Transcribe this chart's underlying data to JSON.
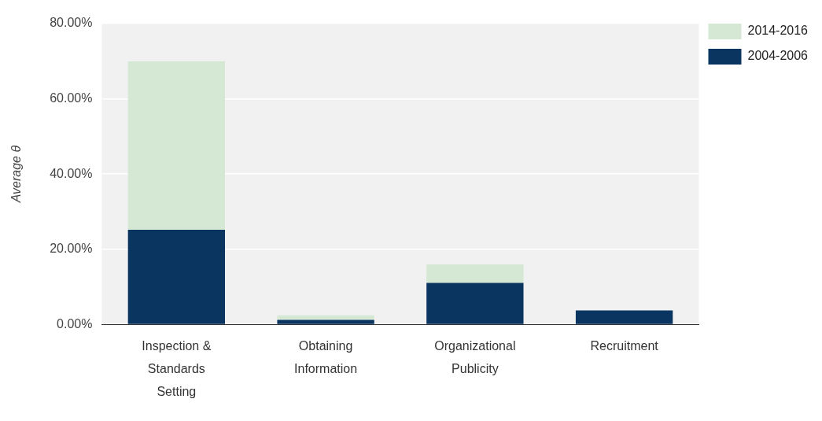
{
  "chart_data": {
    "type": "bar",
    "stacked": true,
    "ylabel": "Average θ",
    "categories": [
      "Inspection & Standards Setting",
      "Obtaining Information",
      "Organizational Publicity",
      "Recruitment"
    ],
    "series": [
      {
        "name": "2004-2006",
        "color": "#0b3561",
        "values": [
          25.2,
          1.3,
          11.1,
          3.8
        ]
      },
      {
        "name": "2014-2016",
        "color": "#d5e8d4",
        "values": [
          44.7,
          1.2,
          4.9,
          0
        ]
      }
    ],
    "ylim": [
      0,
      80
    ],
    "yticks": [
      {
        "value": 0,
        "label": "0.00%"
      },
      {
        "value": 20,
        "label": "20.00%"
      },
      {
        "value": 40,
        "label": "40.00%"
      },
      {
        "value": 60,
        "label": "60.00%"
      },
      {
        "value": 80,
        "label": "80.00%"
      }
    ],
    "grid": "y",
    "legend": "top right"
  }
}
